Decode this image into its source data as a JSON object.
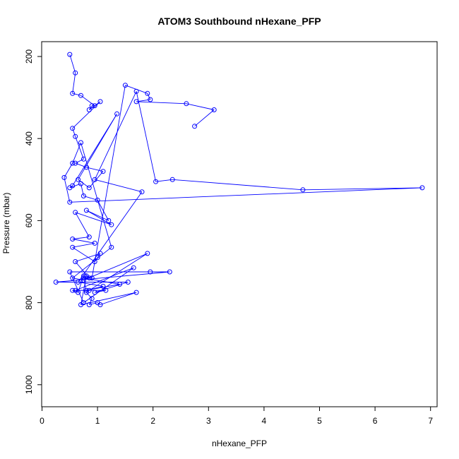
{
  "chart_data": {
    "type": "line",
    "title": "ATOM3 Southbound nHexane_PFP",
    "xlabel": "nHexane_PFP",
    "ylabel": "Pressure (mbar)",
    "xlim": [
      0,
      7
    ],
    "ylim": [
      1040,
      160
    ],
    "y_inverted": true,
    "x_ticks": [
      0,
      1,
      2,
      3,
      4,
      5,
      6,
      7
    ],
    "y_ticks": [
      200,
      400,
      600,
      800,
      1000
    ],
    "grid": false,
    "legend": "none",
    "series_color": "#0000ff",
    "marker": "open-circle",
    "x": [
      0.5,
      0.6,
      0.55,
      0.7,
      0.95,
      0.9,
      0.85,
      1.05,
      0.55,
      0.6,
      0.75,
      0.6,
      0.8,
      1.1,
      0.85,
      0.65,
      1.35,
      0.55,
      0.5,
      0.7,
      0.75,
      1.0,
      1.2,
      0.8,
      1.25,
      0.6,
      0.85,
      0.55,
      0.95,
      0.55,
      0.95,
      1.0,
      1.05,
      0.6,
      0.85,
      0.75,
      1.4,
      0.8,
      1.1,
      0.65,
      1.8,
      0.95,
      1.7,
      2.05,
      2.35,
      4.7,
      6.85,
      0.5,
      0.4,
      0.55,
      0.7,
      1.25,
      0.55,
      0.75,
      1.9,
      0.85,
      0.6,
      1.65,
      0.75,
      0.5,
      1.95,
      2.3,
      0.25,
      1.55,
      0.95,
      1.15,
      0.55,
      0.65,
      0.75,
      0.8,
      0.9,
      0.85,
      1.0,
      1.05,
      1.7,
      0.7,
      0.8,
      0.9,
      1.5,
      1.9,
      1.95,
      1.7,
      2.6,
      3.1,
      2.75
    ],
    "y": [
      195,
      240,
      290,
      295,
      320,
      320,
      330,
      310,
      375,
      395,
      450,
      460,
      470,
      480,
      520,
      500,
      340,
      515,
      520,
      510,
      540,
      550,
      600,
      575,
      610,
      580,
      640,
      645,
      655,
      665,
      700,
      690,
      680,
      700,
      740,
      740,
      755,
      770,
      760,
      750,
      530,
      500,
      285,
      505,
      500,
      525,
      520,
      555,
      495,
      460,
      410,
      665,
      740,
      745,
      680,
      770,
      770,
      715,
      800,
      725,
      725,
      725,
      750,
      750,
      775,
      770,
      770,
      775,
      735,
      775,
      790,
      805,
      800,
      805,
      775,
      805,
      735,
      740,
      270,
      290,
      305,
      310,
      315,
      330,
      370
    ]
  }
}
